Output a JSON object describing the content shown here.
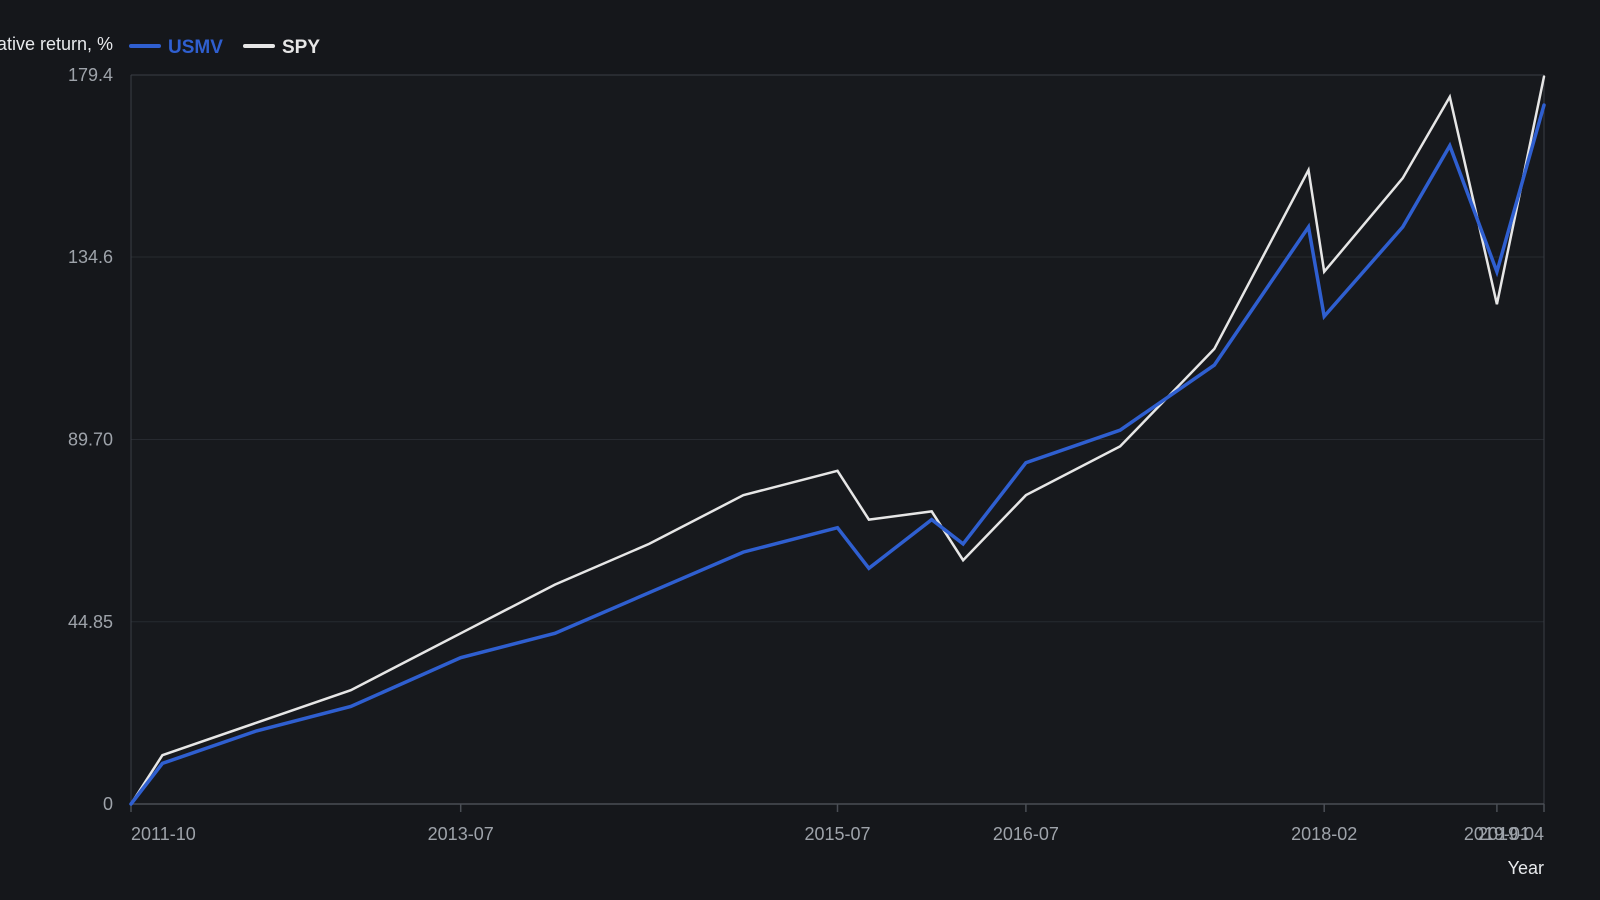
{
  "chart_data": {
    "type": "line",
    "ylabel": "Cumulative return, %",
    "xlabel": "Year",
    "ylim": [
      0,
      179.4
    ],
    "y_ticks": [
      "0",
      "44.85",
      "89.70",
      "134.6",
      "179.4"
    ],
    "x_ticks": [
      "2011-10",
      "2013-07",
      "2015-07",
      "2016-07",
      "2018-02",
      "2019-01",
      "2019-04"
    ],
    "x_range": [
      "2011-10",
      "2019-04"
    ],
    "grid": "horizontal",
    "legend_position": "top-left",
    "x": [
      "2011-10",
      "2011-12",
      "2012-06",
      "2012-12",
      "2013-07",
      "2014-01",
      "2014-07",
      "2015-01",
      "2015-07",
      "2015-09",
      "2016-01",
      "2016-03",
      "2016-07",
      "2017-01",
      "2017-07",
      "2018-01",
      "2018-02",
      "2018-07",
      "2018-10",
      "2019-01",
      "2019-04"
    ],
    "series": [
      {
        "name": "USMV",
        "color": "#2f5fd0",
        "values": [
          0,
          10,
          18,
          24,
          36,
          42,
          52,
          62,
          68,
          58,
          70,
          64,
          84,
          92,
          108,
          142,
          120,
          142,
          162,
          131,
          172
        ]
      },
      {
        "name": "SPY",
        "color": "#e6e6e6",
        "values": [
          0,
          12,
          20,
          28,
          42,
          54,
          64,
          76,
          82,
          70,
          72,
          60,
          76,
          88,
          112,
          156,
          131,
          154,
          174,
          123,
          179
        ]
      }
    ]
  },
  "colors": {
    "background": "#15171b",
    "plot_background": "#17191d",
    "grid": "#272a30",
    "tick_text": "#9ea3aa"
  }
}
